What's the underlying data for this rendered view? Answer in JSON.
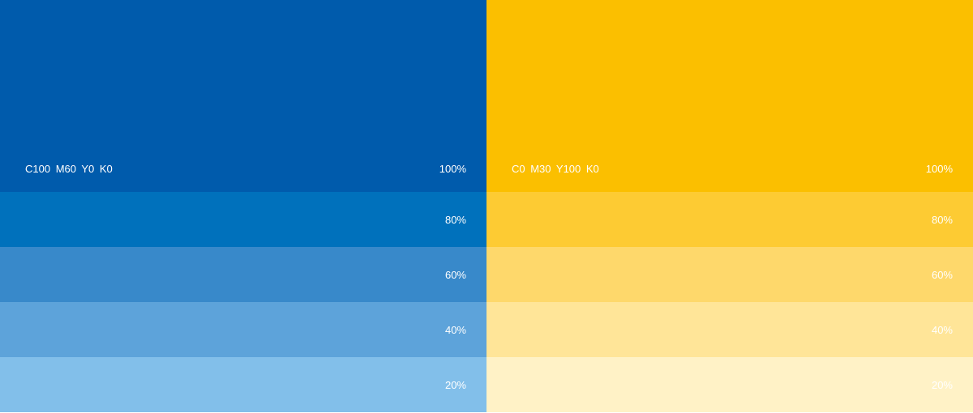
{
  "swatches": [
    {
      "name": "C100  M60  Y0  K0",
      "tints": [
        {
          "label": "100%",
          "color": "#005BAC"
        },
        {
          "label": "80%",
          "color": "#0071BC"
        },
        {
          "label": "60%",
          "color": "#3889CA"
        },
        {
          "label": "40%",
          "color": "#5DA3DA"
        },
        {
          "label": "20%",
          "color": "#82BFEA"
        }
      ]
    },
    {
      "name": "C0  M30  Y100  K0",
      "tints": [
        {
          "label": "100%",
          "color": "#FBBF00"
        },
        {
          "label": "80%",
          "color": "#FDCB33"
        },
        {
          "label": "60%",
          "color": "#FED86B"
        },
        {
          "label": "40%",
          "color": "#FFE598"
        },
        {
          "label": "20%",
          "color": "#FFF2C6"
        }
      ]
    }
  ]
}
